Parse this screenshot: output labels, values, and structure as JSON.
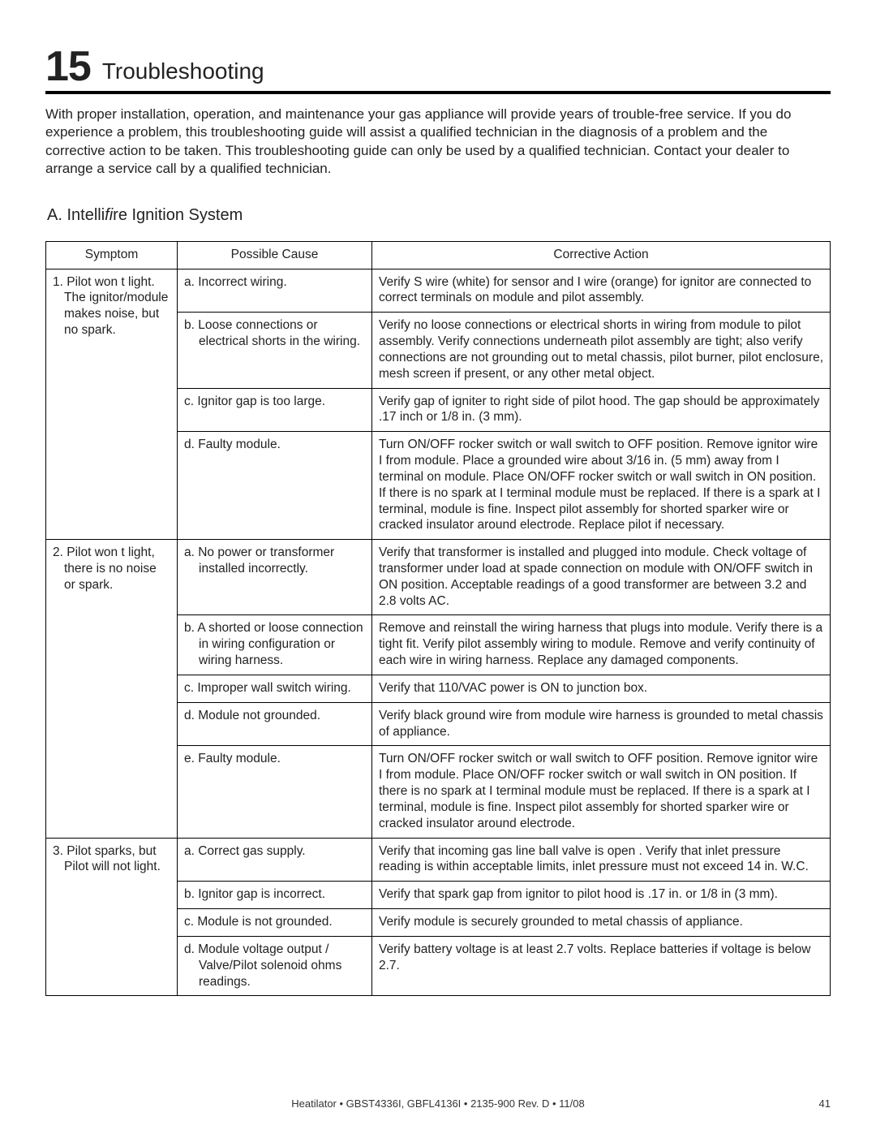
{
  "section": {
    "number": "15",
    "title": "Troubleshooting"
  },
  "intro": "With proper installation, operation, and maintenance your gas appliance will provide years of trouble-free service.  If you do experience a problem, this troubleshooting guide will assist a qualified technician in the diagnosis of a problem and the corrective action to be taken. This troubleshooting guide can only be used by a qualified technician.  Contact your dealer to arrange a service call by a qualified technician.",
  "subsection": {
    "prefix": "A.  Intelli",
    "italic": "fi",
    "suffix": "re Ignition System"
  },
  "headers": {
    "symptom": "Symptom",
    "cause": "Possible Cause",
    "action": "Corrective Action"
  },
  "r1_symptom": "1. Pilot won t light. The ignitor/module makes noise, but no spark.",
  "r1a_cause": "a. Incorrect wiring.",
  "r1a_action": "Verify  S  wire (white) for sensor and  I  wire (orange) for ignitor are connected to correct terminals on module and pilot assembly.",
  "r1b_cause": "b.  Loose connections or electrical shorts in the wiring.",
  "r1b_action": "Verify no loose connections or electrical shorts in wiring from module to pilot assembly. Verify connections underneath pilot assembly are tight; also verify connections are not grounding out to metal chassis, pilot burner, pilot enclosure, mesh screen if present, or any other metal object.",
  "r1c_cause": "c. Ignitor gap is too large.",
  "r1c_action": "Verify gap of igniter to right side of pilot hood. The gap should be approximately .17 inch or 1/8 in. (3 mm).",
  "r1d_cause": "d. Faulty module.",
  "r1d_action": "Turn ON/OFF rocker switch or wall switch to OFF position. Remove ignitor wire  I  from module. Place a grounded wire about 3/16 in. (5 mm) away from  I  terminal on module. Place ON/OFF rocker switch or wall switch in ON position. If there is no spark at  I  terminal module must be replaced. If there is a spark at  I  terminal, module is fine. Inspect pilot assembly for shorted sparker wire or cracked insulator around electrode. Replace pilot if necessary.",
  "r2_symptom": "2. Pilot won t light, there is no noise or spark.",
  "r2a_cause": "a. No power or transformer installed incorrectly.",
  "r2a_action": "Verify that transformer is installed and plugged into module. Check voltage of transformer under load at spade connection on module with ON/OFF switch in ON position. Acceptable readings of a good transformer are between 3.2 and 2.8 volts AC.",
  "r2b_cause": "b. A shorted or loose connection in wiring configuration or wiring harness.",
  "r2b_action": "Remove and reinstall the wiring harness that plugs into module. Verify there is a tight fit. Verify pilot assembly wiring to module. Remove and verify continuity of each wire in wiring harness.  Replace any damaged components.",
  "r2c_cause": "c. Improper wall switch wiring.",
  "r2c_action": "Verify that 110/VAC power is  ON  to junction box.",
  "r2d_cause": "d.  Module not grounded.",
  "r2d_action": "Verify black ground wire from module wire harness is grounded to metal chassis of appliance.",
  "r2e_cause": "e.  Faulty module.",
  "r2e_action": "Turn ON/OFF rocker switch or wall switch to OFF position. Remove ignitor wire  I  from module. Place ON/OFF rocker switch or wall switch in ON position. If there is no spark at  I  terminal module must be replaced. If there is a spark at  I  terminal, module is fine. Inspect pilot assembly for shorted sparker wire or cracked insulator around electrode.",
  "r3_symptom": "3. Pilot sparks, but Pilot will not light.",
  "r3a_cause": "a.  Correct gas supply.",
  "r3a_action": "Verify that incoming gas line ball valve is  open . Verify that inlet pressure reading is within acceptable limits, inlet pressure must not exceed 14 in. W.C.",
  "r3b_cause": "b.  Ignitor gap is incorrect.",
  "r3b_action": "Verify that spark gap from ignitor to pilot hood is .17 in. or 1/8 in (3 mm).",
  "r3c_cause": "c.  Module is not grounded.",
  "r3c_action": "Verify module is securely grounded to metal chassis of appliance.",
  "r3d_cause": "d.  Module voltage output / Valve/Pilot solenoid ohms readings.",
  "r3d_action": "Verify battery voltage is at least 2.7 volts. Replace batteries if voltage is below 2.7.",
  "footer": {
    "line": "Heatilator  •  GBST4336I, GBFL4136I  •  2135-900  Rev. D  •  11/08",
    "page": "41"
  }
}
